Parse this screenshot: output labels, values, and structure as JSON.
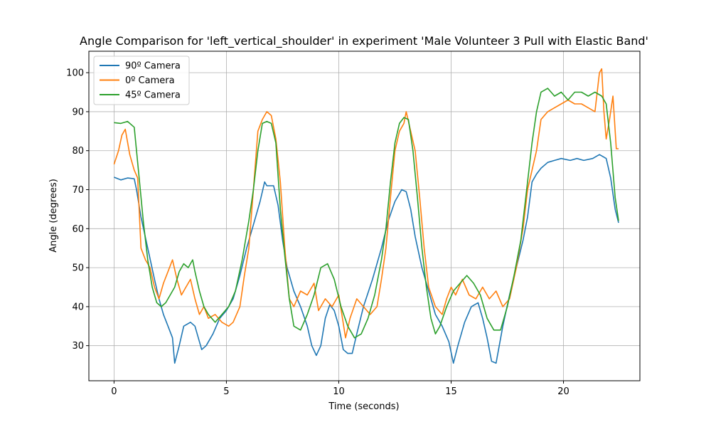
{
  "chart_data": {
    "type": "line",
    "title": "Angle Comparison for 'left_vertical_shoulder' in experiment 'Male Volunteer 3 Pull with Elastic Band'",
    "xlabel": "Time (seconds)",
    "ylabel": "Angle (degrees)",
    "xlim": [
      -1.12,
      23.4
    ],
    "ylim": [
      21,
      105.5
    ],
    "xticks": [
      0,
      5,
      10,
      15,
      20
    ],
    "yticks": [
      30,
      40,
      50,
      60,
      70,
      80,
      90,
      100
    ],
    "grid": true,
    "legend_position": "top-left",
    "series": [
      {
        "name": "90º Camera",
        "color": "#1f77b4",
        "points": [
          [
            0,
            73.2
          ],
          [
            0.3,
            72.5
          ],
          [
            0.6,
            73
          ],
          [
            0.9,
            72.8
          ],
          [
            1.0,
            70
          ],
          [
            1.2,
            63
          ],
          [
            1.5,
            55
          ],
          [
            1.8,
            47
          ],
          [
            2.0,
            42
          ],
          [
            2.2,
            38
          ],
          [
            2.4,
            35
          ],
          [
            2.6,
            32
          ],
          [
            2.7,
            25.5
          ],
          [
            2.9,
            30
          ],
          [
            3.1,
            35
          ],
          [
            3.4,
            36
          ],
          [
            3.6,
            35
          ],
          [
            3.8,
            31
          ],
          [
            3.9,
            29
          ],
          [
            4.1,
            30
          ],
          [
            4.4,
            33
          ],
          [
            4.7,
            37
          ],
          [
            5.0,
            39
          ],
          [
            5.3,
            42
          ],
          [
            5.6,
            48
          ],
          [
            5.9,
            55
          ],
          [
            6.2,
            61
          ],
          [
            6.5,
            67
          ],
          [
            6.7,
            72
          ],
          [
            6.8,
            71
          ],
          [
            7.1,
            71
          ],
          [
            7.3,
            66
          ],
          [
            7.5,
            57
          ],
          [
            7.7,
            50
          ],
          [
            8.0,
            44
          ],
          [
            8.3,
            40
          ],
          [
            8.6,
            35
          ],
          [
            8.8,
            30
          ],
          [
            9.0,
            27.5
          ],
          [
            9.2,
            30
          ],
          [
            9.4,
            37
          ],
          [
            9.6,
            40.5
          ],
          [
            9.8,
            39
          ],
          [
            10.0,
            35
          ],
          [
            10.2,
            29
          ],
          [
            10.4,
            28
          ],
          [
            10.6,
            28
          ],
          [
            10.8,
            33
          ],
          [
            11.1,
            40
          ],
          [
            11.5,
            47
          ],
          [
            11.9,
            55
          ],
          [
            12.2,
            62
          ],
          [
            12.5,
            67
          ],
          [
            12.8,
            70
          ],
          [
            13.0,
            69.5
          ],
          [
            13.2,
            65
          ],
          [
            13.4,
            58
          ],
          [
            13.7,
            50
          ],
          [
            14.0,
            44
          ],
          [
            14.3,
            38
          ],
          [
            14.6,
            35
          ],
          [
            14.9,
            31
          ],
          [
            15.1,
            25.5
          ],
          [
            15.3,
            30
          ],
          [
            15.6,
            36
          ],
          [
            15.9,
            40
          ],
          [
            16.2,
            41
          ],
          [
            16.4,
            37
          ],
          [
            16.6,
            32
          ],
          [
            16.8,
            26
          ],
          [
            17.0,
            25.5
          ],
          [
            17.3,
            35
          ],
          [
            17.6,
            43
          ],
          [
            17.9,
            50
          ],
          [
            18.2,
            57
          ],
          [
            18.4,
            63
          ],
          [
            18.6,
            72
          ],
          [
            18.8,
            74
          ],
          [
            19.0,
            75.5
          ],
          [
            19.3,
            77
          ],
          [
            19.6,
            77.5
          ],
          [
            19.9,
            78
          ],
          [
            20.3,
            77.5
          ],
          [
            20.6,
            78
          ],
          [
            20.9,
            77.5
          ],
          [
            21.3,
            78
          ],
          [
            21.6,
            79
          ],
          [
            21.9,
            78
          ],
          [
            22.1,
            73
          ],
          [
            22.3,
            65
          ],
          [
            22.45,
            61.5
          ]
        ]
      },
      {
        "name": "0º Camera",
        "color": "#ff7f0e",
        "points": [
          [
            0,
            76.5
          ],
          [
            0.2,
            80
          ],
          [
            0.35,
            84
          ],
          [
            0.5,
            85.5
          ],
          [
            0.7,
            79
          ],
          [
            0.9,
            75
          ],
          [
            1.05,
            73
          ],
          [
            1.2,
            55
          ],
          [
            1.4,
            52
          ],
          [
            1.6,
            50
          ],
          [
            1.8,
            45
          ],
          [
            2.0,
            42
          ],
          [
            2.2,
            46
          ],
          [
            2.4,
            49
          ],
          [
            2.6,
            52
          ],
          [
            2.8,
            47
          ],
          [
            3.0,
            43
          ],
          [
            3.2,
            45
          ],
          [
            3.4,
            47
          ],
          [
            3.6,
            42
          ],
          [
            3.8,
            38
          ],
          [
            4.0,
            40
          ],
          [
            4.2,
            37
          ],
          [
            4.5,
            38
          ],
          [
            4.8,
            36
          ],
          [
            5.1,
            35
          ],
          [
            5.3,
            36
          ],
          [
            5.6,
            40
          ],
          [
            5.8,
            48
          ],
          [
            6.0,
            55
          ],
          [
            6.2,
            70
          ],
          [
            6.4,
            85
          ],
          [
            6.6,
            88
          ],
          [
            6.8,
            90
          ],
          [
            7.0,
            89
          ],
          [
            7.2,
            83
          ],
          [
            7.4,
            72
          ],
          [
            7.6,
            55
          ],
          [
            7.8,
            42
          ],
          [
            8.0,
            40
          ],
          [
            8.3,
            44
          ],
          [
            8.6,
            43
          ],
          [
            8.9,
            46
          ],
          [
            9.1,
            39
          ],
          [
            9.4,
            42
          ],
          [
            9.7,
            40
          ],
          [
            10.0,
            43
          ],
          [
            10.3,
            32
          ],
          [
            10.5,
            37
          ],
          [
            10.8,
            42
          ],
          [
            11.1,
            40
          ],
          [
            11.4,
            38
          ],
          [
            11.7,
            40
          ],
          [
            11.9,
            47
          ],
          [
            12.1,
            55
          ],
          [
            12.3,
            68
          ],
          [
            12.5,
            80
          ],
          [
            12.7,
            85
          ],
          [
            12.9,
            87
          ],
          [
            13.0,
            90
          ],
          [
            13.2,
            85
          ],
          [
            13.4,
            80
          ],
          [
            13.6,
            68
          ],
          [
            13.8,
            55
          ],
          [
            14.0,
            45
          ],
          [
            14.3,
            40
          ],
          [
            14.6,
            38
          ],
          [
            14.8,
            42
          ],
          [
            15.0,
            45
          ],
          [
            15.2,
            43
          ],
          [
            15.5,
            47
          ],
          [
            15.8,
            43
          ],
          [
            16.1,
            42
          ],
          [
            16.4,
            45
          ],
          [
            16.7,
            42
          ],
          [
            17.0,
            44
          ],
          [
            17.3,
            40
          ],
          [
            17.6,
            42
          ],
          [
            17.9,
            50
          ],
          [
            18.2,
            60
          ],
          [
            18.4,
            70
          ],
          [
            18.6,
            75
          ],
          [
            18.8,
            80
          ],
          [
            19.0,
            88
          ],
          [
            19.3,
            90
          ],
          [
            19.6,
            91
          ],
          [
            19.9,
            92
          ],
          [
            20.2,
            93
          ],
          [
            20.5,
            92
          ],
          [
            20.8,
            92
          ],
          [
            21.1,
            91
          ],
          [
            21.4,
            90
          ],
          [
            21.6,
            100
          ],
          [
            21.7,
            101
          ],
          [
            21.8,
            90
          ],
          [
            21.9,
            83
          ],
          [
            22.05,
            88
          ],
          [
            22.2,
            94
          ],
          [
            22.35,
            80.5
          ],
          [
            22.45,
            80.5
          ]
        ]
      },
      {
        "name": "45º Camera",
        "color": "#2ca02c",
        "points": [
          [
            0,
            87.2
          ],
          [
            0.3,
            87
          ],
          [
            0.6,
            87.5
          ],
          [
            0.9,
            86
          ],
          [
            1.0,
            80
          ],
          [
            1.1,
            74
          ],
          [
            1.3,
            62
          ],
          [
            1.5,
            52
          ],
          [
            1.7,
            45
          ],
          [
            1.9,
            41
          ],
          [
            2.1,
            40
          ],
          [
            2.3,
            41
          ],
          [
            2.5,
            43
          ],
          [
            2.7,
            45
          ],
          [
            2.9,
            49
          ],
          [
            3.1,
            51
          ],
          [
            3.3,
            50
          ],
          [
            3.5,
            52
          ],
          [
            3.6,
            49
          ],
          [
            3.8,
            44
          ],
          [
            4.0,
            40
          ],
          [
            4.2,
            38
          ],
          [
            4.5,
            36
          ],
          [
            4.8,
            38
          ],
          [
            5.1,
            40
          ],
          [
            5.4,
            44
          ],
          [
            5.7,
            52
          ],
          [
            6.0,
            62
          ],
          [
            6.2,
            70
          ],
          [
            6.4,
            80
          ],
          [
            6.6,
            87
          ],
          [
            6.8,
            87.5
          ],
          [
            7.0,
            87
          ],
          [
            7.2,
            82
          ],
          [
            7.4,
            65
          ],
          [
            7.6,
            53
          ],
          [
            7.8,
            42
          ],
          [
            8.0,
            35
          ],
          [
            8.3,
            34
          ],
          [
            8.6,
            38
          ],
          [
            8.9,
            43
          ],
          [
            9.2,
            50
          ],
          [
            9.5,
            51
          ],
          [
            9.8,
            47
          ],
          [
            10.1,
            40
          ],
          [
            10.4,
            35
          ],
          [
            10.7,
            32
          ],
          [
            11.0,
            33
          ],
          [
            11.3,
            37
          ],
          [
            11.6,
            43
          ],
          [
            11.9,
            52
          ],
          [
            12.1,
            60
          ],
          [
            12.3,
            72
          ],
          [
            12.5,
            82
          ],
          [
            12.7,
            87
          ],
          [
            12.9,
            88.5
          ],
          [
            13.1,
            88
          ],
          [
            13.3,
            80
          ],
          [
            13.5,
            68
          ],
          [
            13.7,
            55
          ],
          [
            13.9,
            45
          ],
          [
            14.1,
            37
          ],
          [
            14.3,
            33
          ],
          [
            14.5,
            35
          ],
          [
            14.8,
            40
          ],
          [
            15.1,
            44
          ],
          [
            15.4,
            46
          ],
          [
            15.7,
            48
          ],
          [
            16.0,
            46
          ],
          [
            16.3,
            43
          ],
          [
            16.6,
            37
          ],
          [
            16.9,
            34
          ],
          [
            17.2,
            34
          ],
          [
            17.5,
            40
          ],
          [
            17.8,
            48
          ],
          [
            18.1,
            57
          ],
          [
            18.4,
            72
          ],
          [
            18.6,
            82
          ],
          [
            18.8,
            90
          ],
          [
            19.0,
            95
          ],
          [
            19.3,
            96
          ],
          [
            19.6,
            94
          ],
          [
            19.9,
            95
          ],
          [
            20.2,
            93
          ],
          [
            20.5,
            95
          ],
          [
            20.8,
            95
          ],
          [
            21.1,
            94
          ],
          [
            21.4,
            95
          ],
          [
            21.7,
            94
          ],
          [
            21.9,
            92
          ],
          [
            22.1,
            82
          ],
          [
            22.3,
            68
          ],
          [
            22.45,
            62
          ]
        ]
      }
    ]
  }
}
